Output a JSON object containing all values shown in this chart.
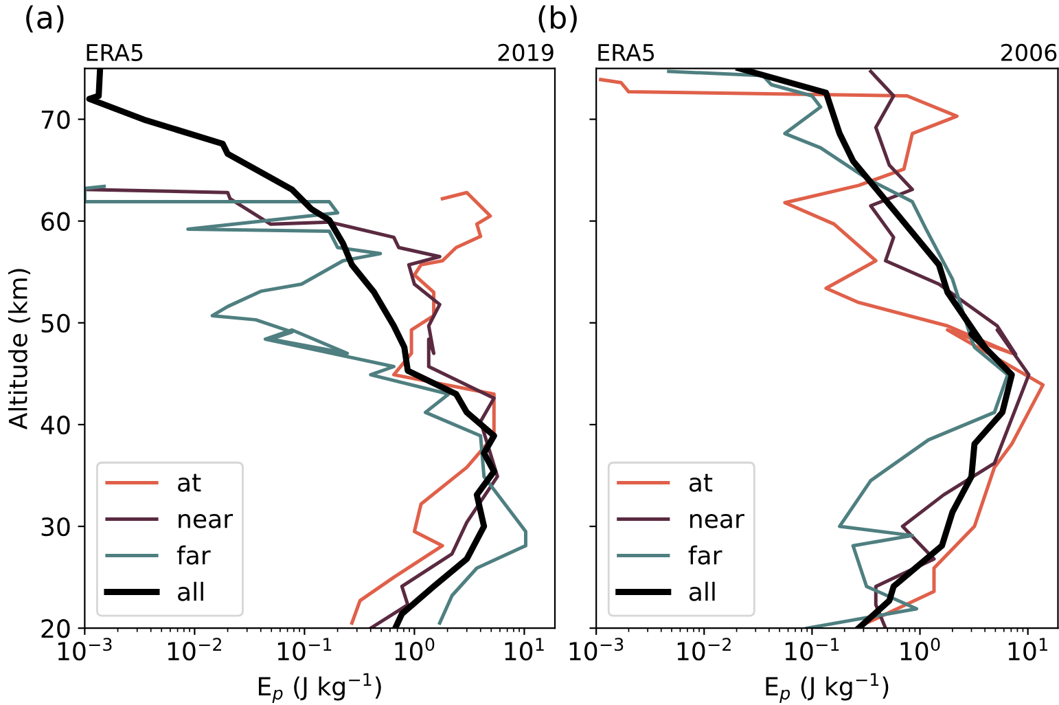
{
  "chart_data": [
    {
      "type": "line",
      "annotations": [
        "(a)",
        "ERA5",
        "2019"
      ],
      "xlabel": "E$_{p}$ (J kg$^{−1}$)",
      "ylabel": "Altitude (km)",
      "log": "x",
      "xlim": [
        0.001,
        19
      ],
      "ylim": [
        20,
        75
      ],
      "xticks": [
        {
          "value": 0.001,
          "label": "10$^{−3}$"
        },
        {
          "value": 0.01,
          "label": "10$^{−2}$"
        },
        {
          "value": 0.1,
          "label": "10$^{−1}$"
        },
        {
          "value": 1,
          "label": "10$^{0}$"
        },
        {
          "value": 10,
          "label": "10$^{1}$"
        }
      ],
      "yticks": [
        20,
        30,
        40,
        50,
        60,
        70
      ],
      "legend": "bottom left",
      "grid": false,
      "series": [
        {
          "name": "at",
          "color": "#e0604a",
          "x": [
            1.8,
            3.0,
            4.9,
            3.7,
            4.0,
            2.4,
            1.8,
            1.15,
            1.0,
            1.5,
            1.5,
            0.94,
            0.94,
            0.65,
            5.3,
            5.3,
            3.0,
            1.15,
            1.0,
            1.8,
            0.65,
            0.32,
            0.27
          ],
          "values": [
            62.2,
            62.8,
            60.5,
            59.7,
            58.5,
            57.4,
            56.1,
            55.7,
            54.7,
            53,
            50.7,
            49.3,
            47,
            44.9,
            43,
            38.9,
            35.8,
            32.2,
            29.5,
            28.1,
            25,
            22.7,
            20.5
          ]
        },
        {
          "name": "near",
          "color": "#5a2a40",
          "x": [
            0.001,
            0.02,
            0.021,
            0.049,
            0.168,
            0.65,
            0.72,
            1.7,
            0.89,
            1.0,
            1.7,
            1.35,
            1.5,
            1.35,
            1.35,
            5.3,
            4.0,
            5.7,
            3.0,
            2.2,
            0.77,
            0.87,
            0.4
          ],
          "values": [
            63.1,
            62.8,
            62.2,
            59.7,
            59.9,
            58.4,
            57.4,
            56.5,
            55.7,
            53.8,
            51.8,
            49.7,
            47,
            48.4,
            45.7,
            42.6,
            40.3,
            34.9,
            30.4,
            27.3,
            24.1,
            22.3,
            20
          ]
        },
        {
          "name": "far",
          "color": "#4f7f80",
          "x": [
            0.0015,
            0.001,
            0.001,
            0.168,
            0.2,
            0.0087,
            0.168,
            0.2,
            0.49,
            0.224,
            0.094,
            0.04,
            0.02,
            0.0145,
            0.036,
            0.077,
            0.049,
            0.245,
            0.077,
            0.044,
            0.65,
            0.4,
            2.05,
            1.26,
            4.0,
            4.3,
            10.3,
            10.3,
            3.7,
            2.2,
            1.7
          ],
          "values": [
            63.4,
            63.2,
            61.9,
            61.9,
            60.8,
            59.2,
            59,
            57.4,
            56.8,
            56.1,
            53.8,
            53.1,
            51.6,
            50.7,
            50.3,
            49.1,
            48.4,
            47,
            49.3,
            48.4,
            45.7,
            44.9,
            43,
            41.2,
            38.9,
            34.9,
            29.5,
            28.1,
            25.9,
            23.2,
            20.5
          ]
        },
        {
          "name": "all",
          "color": "#000000",
          "x": [
            0.00138,
            0.00134,
            0.0011,
            0.0036,
            0.018,
            0.02,
            0.077,
            0.115,
            0.168,
            0.224,
            0.27,
            0.43,
            0.65,
            0.81,
            0.87,
            2.4,
            3.0,
            5.3,
            4.3,
            5.3,
            3.7,
            4.3,
            3.0,
            1.5,
            0.77,
            0.67
          ],
          "values": [
            75,
            72.3,
            72,
            69.9,
            67.6,
            66.6,
            63.1,
            61.2,
            60.1,
            57.8,
            55.7,
            53,
            49.7,
            47.6,
            45.3,
            43,
            41.2,
            38.9,
            37.2,
            35.4,
            33.1,
            30,
            26.8,
            24.1,
            21.4,
            20
          ]
        }
      ]
    },
    {
      "type": "line",
      "annotations": [
        "(b)",
        "ERA5",
        "2006"
      ],
      "xlabel": "E$_{p}$ (J kg$^{−1}$)",
      "log": "x",
      "xlim": [
        0.001,
        19
      ],
      "ylim": [
        20,
        75
      ],
      "tick_labels": "x",
      "xticks": [
        {
          "value": 0.001,
          "label": "10$^{−3}$"
        },
        {
          "value": 0.01,
          "label": "10$^{−2}$"
        },
        {
          "value": 0.1,
          "label": "10$^{−1}$"
        },
        {
          "value": 1,
          "label": "10$^{0}$"
        },
        {
          "value": 10,
          "label": "10$^{1}$"
        }
      ],
      "yticks": [
        20,
        30,
        40,
        50,
        60,
        70
      ],
      "legend": "bottom left",
      "grid": false,
      "series": [
        {
          "name": "at",
          "color": "#e0604a",
          "x": [
            0.0011,
            0.0017,
            0.002,
            0.76,
            2.2,
            0.85,
            0.71,
            0.27,
            0.056,
            0.16,
            0.39,
            0.135,
            0.27,
            1.8,
            7.1,
            1.8,
            13.8,
            7.1,
            4.9,
            3.2,
            1.35,
            1.35,
            0.32
          ],
          "values": [
            73.9,
            73.6,
            72.7,
            72.3,
            70.3,
            68.6,
            65.1,
            63.5,
            61.8,
            59.7,
            56.1,
            53.4,
            52,
            49.7,
            47,
            49.3,
            43.9,
            38.1,
            35.8,
            30,
            25.9,
            23.6,
            20.5
          ]
        },
        {
          "name": "near",
          "color": "#5a2a40",
          "x": [
            0.35,
            0.57,
            0.39,
            0.52,
            0.85,
            0.35,
            0.57,
            0.48,
            1.5,
            5.2,
            7.7,
            5.2,
            10.2,
            4.9,
            1.66,
            0.69,
            1.35,
            0.39,
            0.39,
            0.48
          ],
          "values": [
            74.7,
            72.3,
            69.2,
            65.5,
            63.1,
            61.5,
            58.4,
            56.1,
            53.8,
            49.7,
            46.9,
            49.3,
            44.9,
            36.2,
            33.1,
            30,
            26.8,
            24.1,
            22.3,
            20
          ]
        },
        {
          "name": "far",
          "color": "#4f7f80",
          "x": [
            0.0047,
            0.035,
            0.042,
            0.1,
            0.12,
            0.056,
            0.12,
            0.32,
            0.85,
            1.14,
            2.0,
            3.0,
            3.2,
            6.5,
            4.9,
            1.2,
            0.35,
            0.18,
            0.85,
            0.24,
            0.32,
            0.93,
            0.09
          ],
          "values": [
            74.7,
            74.3,
            73.4,
            72.3,
            71.2,
            68.6,
            67.2,
            64.2,
            61.9,
            59.2,
            54.3,
            48.4,
            47.6,
            44.9,
            41.2,
            38.5,
            34.5,
            30,
            29.1,
            28.1,
            24.1,
            21.9,
            20
          ]
        },
        {
          "name": "all",
          "color": "#000000",
          "x": [
            0.021,
            0.135,
            0.18,
            0.24,
            0.57,
            1.5,
            1.8,
            4.0,
            3.0,
            7.1,
            5.8,
            3.2,
            3.0,
            2.0,
            1.6,
            0.57,
            0.52,
            0.27
          ],
          "values": [
            75,
            72.6,
            68.6,
            65.9,
            61.1,
            55.7,
            53,
            47.6,
            48.9,
            44.9,
            41.2,
            38.1,
            34.9,
            31.4,
            28.1,
            24.1,
            22.7,
            20
          ]
        }
      ]
    }
  ]
}
